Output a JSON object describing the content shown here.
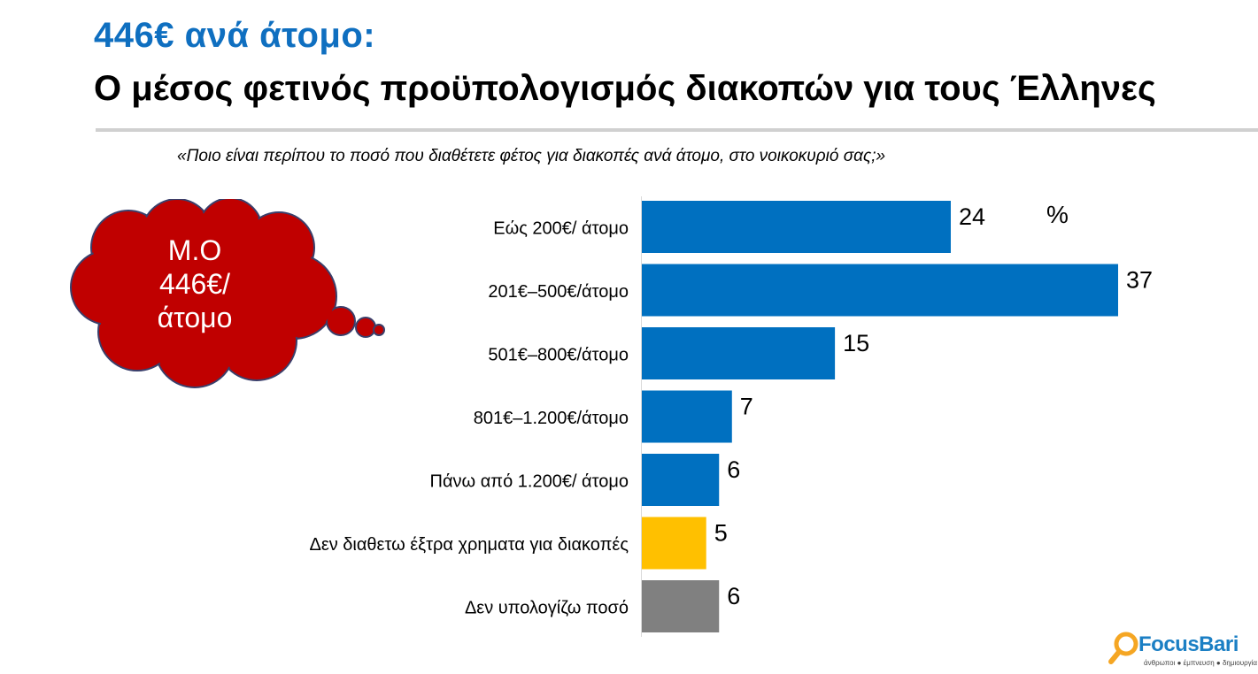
{
  "title": {
    "line1": "446€ ανά άτομο:",
    "line2": "Ο μέσος φετινός προϋπολογισμός διακοπών για τους Έλληνες"
  },
  "question": "«Ποιο είναι περίπου το ποσό που διαθέτετε φέτος για διακοπές ανά άτομο, στο νοικοκυριό σας;»",
  "callout": {
    "line1": "Μ.Ο",
    "line2": "446€/",
    "line3": "άτομο",
    "fill_color": "#c00000"
  },
  "chart_data": {
    "type": "bar",
    "orientation": "horizontal",
    "unit": "%",
    "categories": [
      "Εώς 200€/ άτομο",
      "201€–500€/άτομο",
      "501€–800€/άτομο",
      "801€–1.200€/άτομο",
      "Πάνω από 1.200€/ άτομο",
      "Δεν διαθετω έξτρα χρηματα για διακοπές",
      "Δεν υπολογίζω ποσό"
    ],
    "values": [
      24,
      37,
      15,
      7,
      6,
      5,
      6
    ],
    "colors": [
      "#0070c0",
      "#0070c0",
      "#0070c0",
      "#0070c0",
      "#0070c0",
      "#ffc000",
      "#808080"
    ],
    "xlim": [
      0,
      37
    ],
    "grid": false,
    "legend": "none"
  },
  "logo": {
    "name": "FocusBari",
    "tagline": "άνθρωποι ● έμπνευση ● δημιουργία",
    "accent_color": "#f5a623"
  }
}
